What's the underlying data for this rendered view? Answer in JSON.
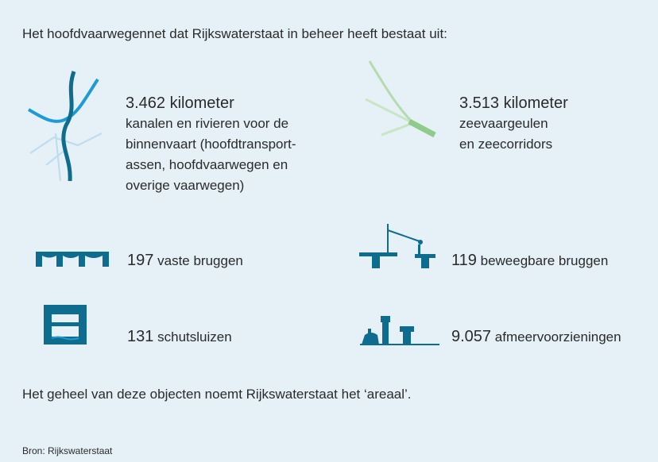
{
  "intro": "Het hoofdvaarwegennet dat Rijkswaterstaat in beheer heeft bestaat uit:",
  "items": [
    {
      "number": "3.462 kilometer",
      "lines": [
        "kanalen en rivieren voor de",
        "binnenvaart (hoofdtransport-",
        "assen, hoofdvaarwegen en",
        "overige vaarwegen)"
      ]
    },
    {
      "number": "3.513 kilometer",
      "lines": [
        "zeevaargeulen",
        "en zeecorridors"
      ]
    },
    {
      "number": "197",
      "label": "vaste bruggen"
    },
    {
      "number": "119",
      "label": "beweegbare bruggen"
    },
    {
      "number": "131",
      "label": "schutsluizen"
    },
    {
      "number": "9.057",
      "label": "afmeervoorzieningen"
    }
  ],
  "outro": "Het geheel van deze objecten noemt Rijkswaterstaat het ‘areaal’.",
  "source": "Bron: Rijkswaterstaat"
}
